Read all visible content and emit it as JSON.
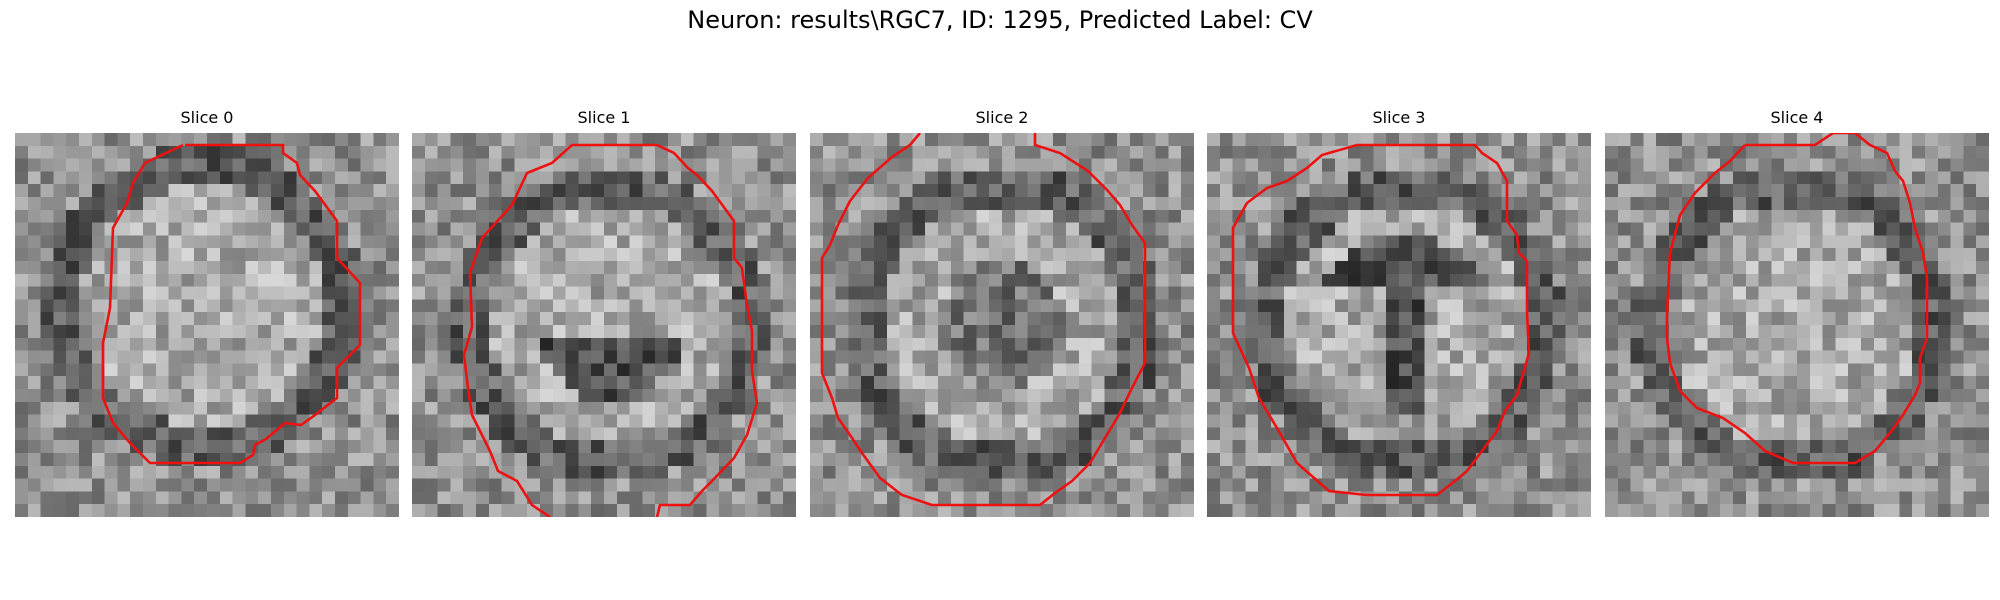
{
  "figure": {
    "title": "Neuron: results\\RGC7, ID: 1295, Predicted Label: CV"
  },
  "panels": [
    {
      "title": "Slice 0"
    },
    {
      "title": "Slice 1"
    },
    {
      "title": "Slice 2"
    },
    {
      "title": "Slice 3"
    },
    {
      "title": "Slice 4"
    }
  ],
  "colors": {
    "contour": "#ee1111",
    "colormap": "grayscale"
  }
}
